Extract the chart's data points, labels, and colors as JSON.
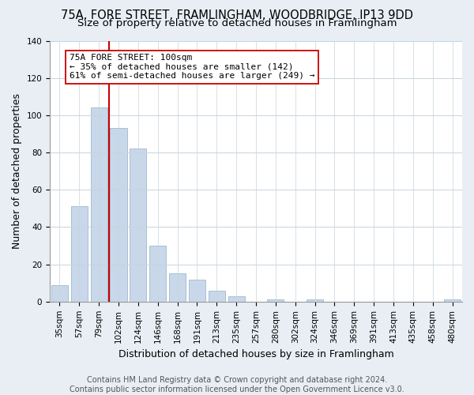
{
  "title": "75A, FORE STREET, FRAMLINGHAM, WOODBRIDGE, IP13 9DD",
  "subtitle": "Size of property relative to detached houses in Framlingham",
  "xlabel": "Distribution of detached houses by size in Framlingham",
  "ylabel": "Number of detached properties",
  "footnote1": "Contains HM Land Registry data © Crown copyright and database right 2024.",
  "footnote2": "Contains public sector information licensed under the Open Government Licence v3.0.",
  "bar_labels": [
    "35sqm",
    "57sqm",
    "79sqm",
    "102sqm",
    "124sqm",
    "146sqm",
    "168sqm",
    "191sqm",
    "213sqm",
    "235sqm",
    "257sqm",
    "280sqm",
    "302sqm",
    "324sqm",
    "346sqm",
    "369sqm",
    "391sqm",
    "413sqm",
    "435sqm",
    "458sqm",
    "480sqm"
  ],
  "bar_values": [
    9,
    51,
    104,
    93,
    82,
    30,
    15,
    12,
    6,
    3,
    0,
    1,
    0,
    1,
    0,
    0,
    0,
    0,
    0,
    0,
    1
  ],
  "bar_color": "#c8d8ea",
  "bar_edge_color": "#a0b8cc",
  "vline_index": 2.5,
  "vline_color": "#cc0000",
  "annotation_title": "75A FORE STREET: 100sqm",
  "annotation_line1": "← 35% of detached houses are smaller (142)",
  "annotation_line2": "61% of semi-detached houses are larger (249) →",
  "annotation_box_color": "#ffffff",
  "annotation_box_edge": "#cc0000",
  "ylim": [
    0,
    140
  ],
  "yticks": [
    0,
    20,
    40,
    60,
    80,
    100,
    120,
    140
  ],
  "background_color": "#e8eef4",
  "plot_background": "#ffffff",
  "title_fontsize": 10.5,
  "subtitle_fontsize": 9.5,
  "axis_label_fontsize": 9,
  "tick_fontsize": 7.5,
  "footnote_fontsize": 7
}
